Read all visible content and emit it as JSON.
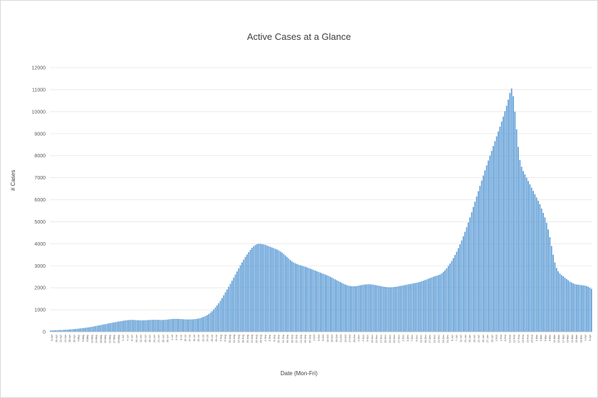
{
  "chart_data": {
    "type": "bar",
    "title": "Active Cases at a Glance",
    "xlabel": "Date (Mon-Fri)",
    "ylabel": "# Cases",
    "ylim": [
      0,
      12000
    ],
    "y_ticks": [
      0,
      1000,
      2000,
      3000,
      4000,
      5000,
      6000,
      7000,
      8000,
      9000,
      10000,
      11000,
      12000
    ],
    "grid": true,
    "bar_color": "#5b9bd5",
    "x_tick_labels": [
      "6-Apr",
      "20-Apr",
      "22-Apr",
      "24-Apr",
      "28-Apr",
      "30-Apr",
      "4-May",
      "6-May",
      "8-May",
      "12-May",
      "14-May",
      "18-May",
      "20-May",
      "22-May",
      "27-May",
      "29-May",
      "2-Jun",
      "4-Jun",
      "8-Jun",
      "10-Jun",
      "12-Jun",
      "16-Jun",
      "18-Jun",
      "22-Jun",
      "24-Jun",
      "26-Jun",
      "30-Jun",
      "2-Jul",
      "6-Jul",
      "8-Jul",
      "10-Jul",
      "14-Jul",
      "16-Jul",
      "20-Jul",
      "22-Jul",
      "24-Jul",
      "28-Jul",
      "30-Jul",
      "4-Aug",
      "6-Aug",
      "10-Aug",
      "12-Aug",
      "14-Aug",
      "18-Aug",
      "20-Aug",
      "24-Aug",
      "26-Aug",
      "28-Aug",
      "1-Sep",
      "3-Sep",
      "8-Sep",
      "10-Sep",
      "14-Sep",
      "16-Sep",
      "18-Sep",
      "22-Sep",
      "24-Sep",
      "28-Sep",
      "30-Sep",
      "2-Oct",
      "6-Oct",
      "8-Oct",
      "13-Oct",
      "15-Oct",
      "19-Oct",
      "21-Oct",
      "23-Oct",
      "27-Oct",
      "29-Oct",
      "2-Nov",
      "4-Nov",
      "6-Nov",
      "10-Nov",
      "13-Nov",
      "17-Nov",
      "19-Nov",
      "23-Nov",
      "25-Nov",
      "27-Nov",
      "1-Dec",
      "3-Dec",
      "7-Dec",
      "9-Dec",
      "11-Dec",
      "15-Dec",
      "17-Dec",
      "21-Dec",
      "23-Dec",
      "29-Dec",
      "31-Dec",
      "5-Jan",
      "7-Jan",
      "11-Jan",
      "13-Jan",
      "15-Jan",
      "19-Jan",
      "21-Jan",
      "25-Jan",
      "27-Jan",
      "29-Jan",
      "2-Feb",
      "4-Feb",
      "8-Feb",
      "10-Feb",
      "12-Feb",
      "17-Feb",
      "19-Feb",
      "23-Feb",
      "25-Feb",
      "1-Mar",
      "3-Mar",
      "5-Mar",
      "9-Mar",
      "11-Mar",
      "15-Mar",
      "17-Mar",
      "19-Mar",
      "23-Mar",
      "25-Mar",
      "30-Mar",
      "1-Apr",
      "6-Apr"
    ],
    "values": [
      60,
      63,
      66,
      69,
      72,
      76,
      80,
      84,
      88,
      93,
      98,
      104,
      110,
      116,
      123,
      130,
      138,
      146,
      155,
      164,
      174,
      184,
      195,
      206,
      218,
      230,
      245,
      260,
      275,
      290,
      305,
      320,
      335,
      350,
      365,
      382,
      398,
      412,
      425,
      440,
      455,
      468,
      480,
      493,
      505,
      517,
      525,
      533,
      540,
      540,
      538,
      533,
      527,
      523,
      521,
      520,
      522,
      526,
      531,
      536,
      540,
      543,
      545,
      545,
      543,
      540,
      538,
      537,
      539,
      545,
      555,
      565,
      575,
      582,
      586,
      588,
      587,
      583,
      578,
      573,
      568,
      565,
      563,
      562,
      562,
      565,
      570,
      578,
      590,
      605,
      625,
      650,
      680,
      715,
      755,
      805,
      865,
      935,
      1015,
      1105,
      1200,
      1300,
      1410,
      1530,
      1660,
      1790,
      1920,
      2050,
      2180,
      2320,
      2460,
      2600,
      2740,
      2880,
      3020,
      3150,
      3280,
      3400,
      3510,
      3620,
      3720,
      3810,
      3880,
      3940,
      3980,
      4000,
      3995,
      3985,
      3970,
      3950,
      3920,
      3890,
      3860,
      3830,
      3800,
      3770,
      3740,
      3700,
      3650,
      3600,
      3540,
      3470,
      3400,
      3330,
      3260,
      3200,
      3150,
      3110,
      3080,
      3050,
      3025,
      3000,
      2980,
      2955,
      2930,
      2900,
      2870,
      2840,
      2810,
      2780,
      2750,
      2720,
      2690,
      2660,
      2630,
      2600,
      2570,
      2540,
      2500,
      2460,
      2420,
      2380,
      2340,
      2300,
      2260,
      2220,
      2185,
      2150,
      2120,
      2095,
      2080,
      2070,
      2068,
      2072,
      2080,
      2095,
      2110,
      2125,
      2140,
      2150,
      2155,
      2158,
      2155,
      2150,
      2140,
      2125,
      2110,
      2095,
      2080,
      2065,
      2050,
      2040,
      2030,
      2025,
      2022,
      2025,
      2030,
      2040,
      2050,
      2065,
      2080,
      2095,
      2110,
      2125,
      2140,
      2155,
      2170,
      2185,
      2200,
      2215,
      2230,
      2250,
      2270,
      2295,
      2320,
      2350,
      2380,
      2410,
      2440,
      2470,
      2500,
      2525,
      2550,
      2575,
      2600,
      2650,
      2720,
      2800,
      2890,
      2990,
      3100,
      3220,
      3350,
      3490,
      3640,
      3800,
      3970,
      4150,
      4340,
      4540,
      4750,
      4970,
      5200,
      5430,
      5670,
      5910,
      6150,
      6390,
      6630,
      6870,
      7100,
      7330,
      7560,
      7780,
      8000,
      8220,
      8440,
      8660,
      8880,
      9100,
      9320,
      9550,
      9780,
      10020,
      10270,
      10550,
      10850,
      11050,
      10700,
      10000,
      9200,
      8400,
      7800,
      7500,
      7300,
      7150,
      7000,
      6850,
      6700,
      6550,
      6400,
      6250,
      6100,
      5950,
      5800,
      5600,
      5400,
      5200,
      4950,
      4650,
      4300,
      3900,
      3500,
      3150,
      2900,
      2750,
      2650,
      2580,
      2520,
      2460,
      2400,
      2340,
      2280,
      2240,
      2200,
      2170,
      2150,
      2140,
      2130,
      2120,
      2110,
      2100,
      2080,
      2050,
      2000,
      1950
    ]
  }
}
